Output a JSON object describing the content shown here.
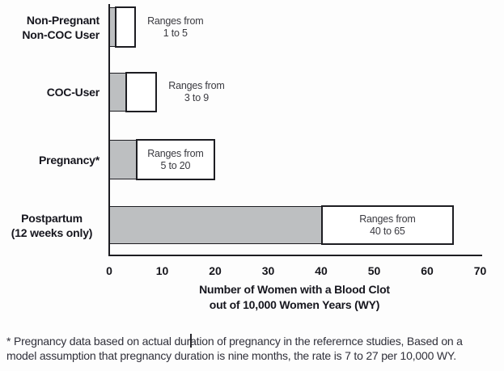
{
  "chart_data": {
    "type": "bar",
    "orientation": "horizontal",
    "title": "",
    "xlabel_line1": "Number of Women with a Blood Clot",
    "xlabel_line2": "out of 10,000 Women Years (WY)",
    "xlim": [
      0,
      70
    ],
    "xticks": [
      0,
      10,
      20,
      30,
      40,
      50,
      60,
      70
    ],
    "grid": false,
    "legend": "none",
    "bars": [
      {
        "category_lines": [
          "Non-Pregnant",
          "Non-COC User"
        ],
        "range_low": 1,
        "range_high": 5,
        "annotation_lines": [
          "Ranges from",
          "1 to 5"
        ],
        "annotation_position": "outside"
      },
      {
        "category_lines": [
          "COC-User"
        ],
        "range_low": 3,
        "range_high": 9,
        "annotation_lines": [
          "Ranges from",
          "3 to 9"
        ],
        "annotation_position": "outside"
      },
      {
        "category_lines": [
          "Pregnancy*"
        ],
        "range_low": 5,
        "range_high": 20,
        "annotation_lines": [
          "Ranges from",
          "5 to 20"
        ],
        "annotation_position": "inside"
      },
      {
        "category_lines": [
          "Postpartum",
          "(12 weeks only)"
        ],
        "range_low": 40,
        "range_high": 65,
        "annotation_lines": [
          "Ranges from",
          "40 to 65"
        ],
        "annotation_position": "inside"
      }
    ],
    "colors": {
      "bar_low_fill": "#bdbfc1",
      "bar_range_fill": "#ffffff",
      "bar_border": "#1d1d22",
      "axis": "#1d1d22",
      "category_text": "#16161e",
      "annotation_text": "#3a3a40"
    }
  },
  "footnote": {
    "lines": [
      "* Pregnancy data based on actual duration of pregnancy in the referernce studies, Based on a",
      "model assumption that pregnancy duration is nine months, the rate is 7 to 27 per 10,000 WY."
    ]
  }
}
